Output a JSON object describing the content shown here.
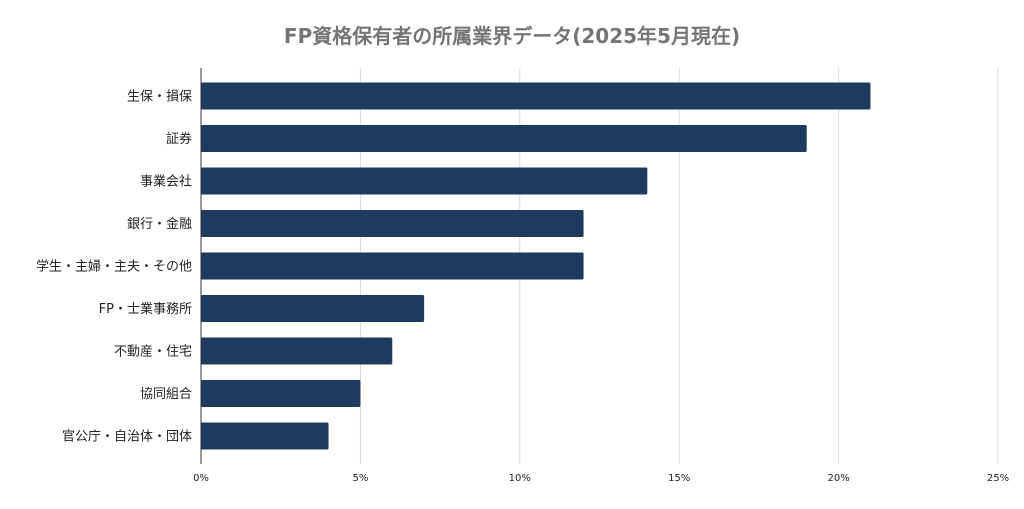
{
  "chart_data": {
    "type": "bar",
    "orientation": "horizontal",
    "title": "FP資格保有者の所属業界データ(2025年5月現在)",
    "xlabel": "",
    "ylabel": "",
    "categories": [
      "生保・損保",
      "証券",
      "事業会社",
      "銀行・金融",
      "学生・主婦・主夫・その他",
      "FP・士業事務所",
      "不動産・住宅",
      "協同組合",
      "官公庁・自治体・団体"
    ],
    "values": [
      21,
      19,
      14,
      12,
      12,
      7,
      6,
      5,
      4
    ],
    "xlim": [
      0,
      25
    ],
    "x_ticks": [
      "0%",
      "5%",
      "10%",
      "15%",
      "20%",
      "25%"
    ],
    "grid": true,
    "legend": "none",
    "bar_color": "#1f3a5f"
  }
}
